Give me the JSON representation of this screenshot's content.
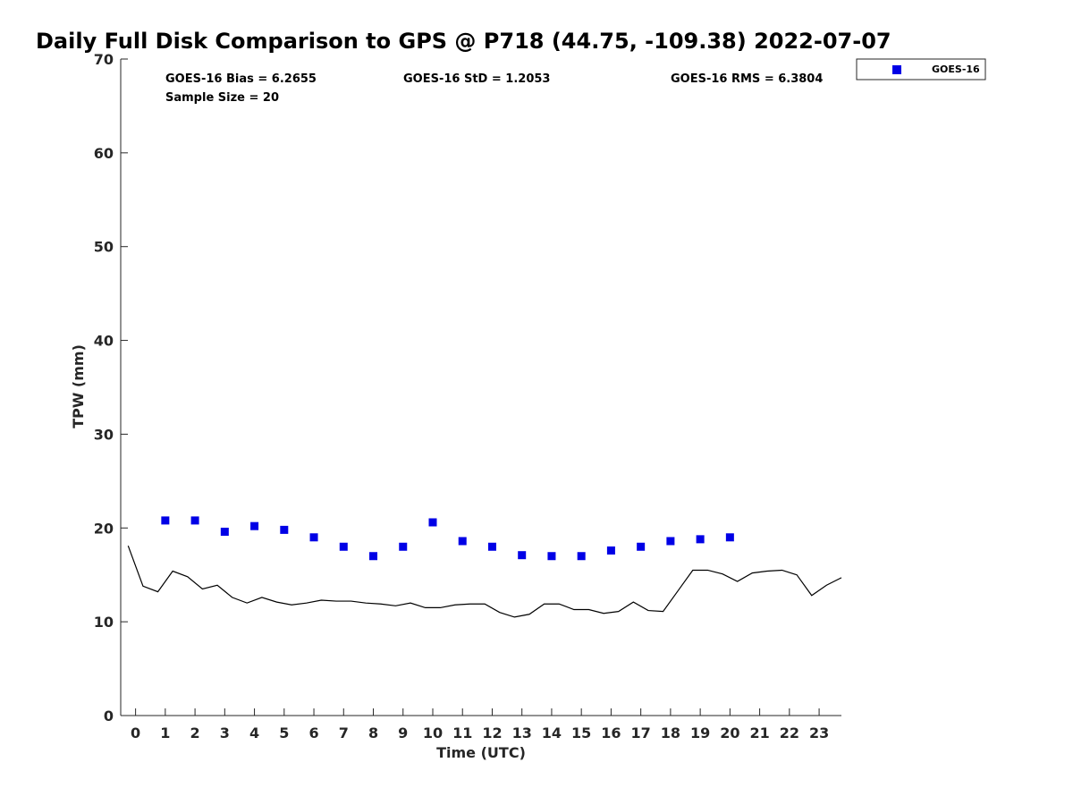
{
  "chart_data": {
    "type": "scatter",
    "title": "Daily Full Disk Comparison to GPS @ P718 (44.75, -109.38) 2022-07-07",
    "xlabel": "Time (UTC)",
    "ylabel": "TPW (mm)",
    "xlim": [
      -0.5,
      23.75
    ],
    "ylim": [
      0,
      70
    ],
    "xticks": [
      0,
      1,
      2,
      3,
      4,
      5,
      6,
      7,
      8,
      9,
      10,
      11,
      12,
      13,
      14,
      15,
      16,
      17,
      18,
      19,
      20,
      21,
      22,
      23
    ],
    "yticks": [
      0,
      10,
      20,
      30,
      40,
      50,
      60,
      70
    ],
    "grid": false,
    "legend_position": "top-right",
    "stats": [
      {
        "text": "GOES-16 Bias = 6.2655"
      },
      {
        "text": "GOES-16 StD = 1.2053"
      },
      {
        "text": "GOES-16 RMS = 6.3804"
      },
      {
        "text": "Sample Size = 20"
      }
    ],
    "series": [
      {
        "name": "GOES-16",
        "kind": "scatter",
        "marker": "square",
        "color": "#0000e6",
        "x": [
          1,
          2,
          3,
          4,
          5,
          6,
          7,
          8,
          9,
          10,
          11,
          12,
          13,
          14,
          15,
          16,
          17,
          18,
          19,
          20
        ],
        "y": [
          20.8,
          20.8,
          19.6,
          20.2,
          19.8,
          19.0,
          18.0,
          17.0,
          18.0,
          20.6,
          18.6,
          18.0,
          17.1,
          17.0,
          17.0,
          17.6,
          18.0,
          18.6,
          18.8,
          19.0
        ]
      },
      {
        "kind": "line",
        "color": "#000000",
        "x": [
          -0.25,
          0.25,
          0.75,
          1.25,
          1.75,
          2.25,
          2.75,
          3.25,
          3.75,
          4.25,
          4.75,
          5.25,
          5.75,
          6.25,
          6.75,
          7.25,
          7.75,
          8.25,
          8.75,
          9.25,
          9.75,
          10.25,
          10.75,
          11.25,
          11.75,
          12.25,
          12.75,
          13.25,
          13.75,
          14.25,
          14.75,
          15.25,
          15.75,
          16.25,
          16.75,
          17.25,
          17.75,
          18.25,
          18.75,
          19.25,
          19.75,
          20.25,
          20.75,
          21.25,
          21.75,
          22.25,
          22.75,
          23.25,
          23.75
        ],
        "y": [
          18.1,
          13.8,
          13.2,
          15.4,
          14.8,
          13.5,
          13.9,
          12.6,
          12.0,
          12.6,
          12.1,
          11.8,
          12.0,
          12.3,
          12.2,
          12.2,
          12.0,
          11.9,
          11.7,
          12.0,
          11.5,
          11.5,
          11.8,
          11.9,
          11.9,
          11.0,
          10.5,
          10.8,
          11.9,
          11.9,
          11.3,
          11.3,
          10.9,
          11.1,
          12.1,
          11.2,
          11.1,
          13.3,
          15.5,
          15.5,
          15.1,
          14.3,
          15.2,
          15.4,
          15.5,
          15.0,
          12.8,
          13.9,
          14.7
        ]
      }
    ]
  }
}
